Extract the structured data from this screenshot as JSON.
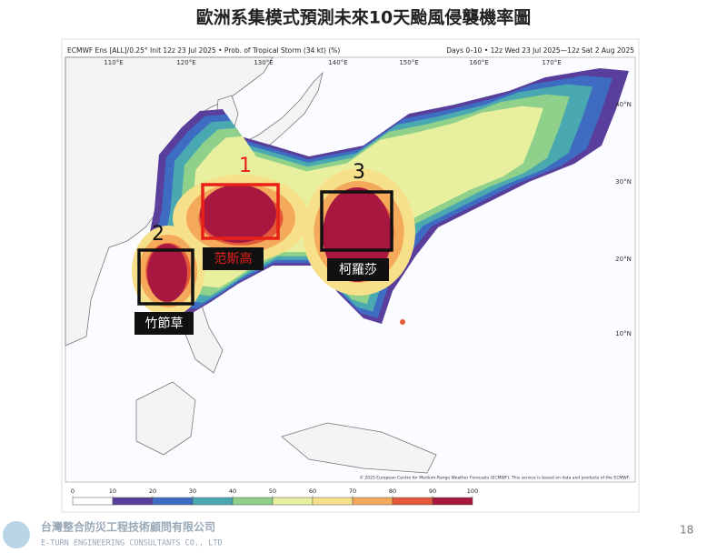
{
  "title": "歐洲系集模式預測未來10天颱風侵襲機率圖",
  "map": {
    "header_left": "ECMWF Ens [ALL]/0.25° Init 12z 23 Jul 2025 • Prob. of Tropical Storm (34 kt) (%)",
    "header_right": "Days 0–10 • 12z Wed 23 Jul 2025—12z Sat 2 Aug 2025",
    "longitudes": [
      "110°E",
      "120°E",
      "130°E",
      "140°E",
      "150°E",
      "160°E",
      "170°E"
    ],
    "latitudes": [
      "40°N",
      "30°N",
      "20°N",
      "10°N"
    ],
    "credit": "© 2025 European Centre for Medium-Range Weather Forecasts (ECMWF). This service is based on data and products of the ECMWF.",
    "storms": [
      {
        "number": "1",
        "name": "范斯高"
      },
      {
        "number": "2",
        "name": "竹節草"
      },
      {
        "number": "3",
        "name": "柯羅莎"
      }
    ]
  },
  "colorbar": {
    "ticks": [
      0,
      10,
      20,
      30,
      40,
      50,
      60,
      70,
      80,
      90,
      100
    ],
    "colors": [
      "#ffffff",
      "#5a3e9b",
      "#3d6cc2",
      "#4aa9b0",
      "#8fd08a",
      "#e8f0a0",
      "#f7e08a",
      "#f5a95a",
      "#e4583a",
      "#a8173f"
    ]
  },
  "footer": {
    "company": "台灣整合防災工程技術顧問有限公司",
    "company_en": "E-TURN ENGINEERING CONSULTANTS CO., LTD",
    "page": "18"
  }
}
